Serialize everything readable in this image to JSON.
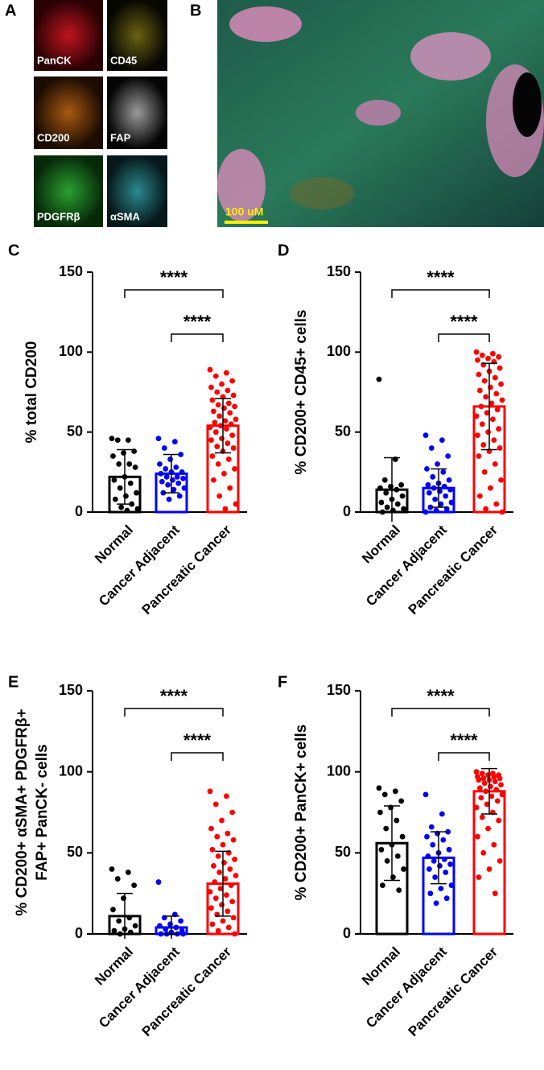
{
  "image_panels": {
    "letters": [
      "A",
      "B"
    ],
    "channels": [
      "PanCK",
      "CD45",
      "CD200",
      "FAP",
      "PDGFRβ",
      "αSMA"
    ],
    "scale_bar": "100 uM"
  },
  "chart_data": [
    {
      "type": "bar",
      "panel_label": "C",
      "ylabel": "% total CD200",
      "categories": [
        "Normal",
        "Cancer Adjacent",
        "Pancreatic Cancer"
      ],
      "colors": [
        "#000000",
        "#0000ff",
        "#ff0000"
      ],
      "values": [
        22,
        24,
        54
      ],
      "errors": [
        17,
        12,
        17
      ],
      "points": [
        [
          46,
          45,
          45,
          38,
          37,
          35,
          30,
          30,
          28,
          22,
          20,
          18,
          15,
          12,
          10,
          8,
          5,
          3,
          2,
          1
        ],
        [
          46,
          44,
          40,
          36,
          33,
          30,
          28,
          27,
          25,
          25,
          24,
          22,
          22,
          21,
          20,
          19,
          18,
          17,
          15,
          14,
          12,
          10,
          8
        ],
        [
          89,
          87,
          85,
          82,
          80,
          78,
          76,
          75,
          73,
          72,
          70,
          68,
          67,
          66,
          65,
          63,
          62,
          60,
          58,
          57,
          56,
          55,
          54,
          53,
          52,
          50,
          48,
          46,
          45,
          43,
          41,
          40,
          38,
          35,
          33,
          30,
          27,
          24,
          20,
          15,
          10,
          5,
          2
        ]
      ],
      "ylim": [
        0,
        150
      ],
      "yticks": [
        0,
        50,
        100,
        150
      ],
      "annotations": [
        {
          "text": "****",
          "between": [
            "Normal",
            "Pancreatic Cancer"
          ]
        },
        {
          "text": "****",
          "between": [
            "Cancer Adjacent",
            "Pancreatic Cancer"
          ]
        }
      ]
    },
    {
      "type": "bar",
      "panel_label": "D",
      "ylabel": "% CD200+ CD45+ cells",
      "categories": [
        "Normal",
        "Cancer Adjacent",
        "Pancreatic Cancer"
      ],
      "colors": [
        "#000000",
        "#0000ff",
        "#ff0000"
      ],
      "values": [
        14,
        15,
        66
      ],
      "errors": [
        20,
        12,
        27
      ],
      "points": [
        [
          83,
          33,
          20,
          17,
          16,
          15,
          14,
          12,
          10,
          8,
          6,
          5,
          3,
          2,
          1,
          0
        ],
        [
          48,
          45,
          40,
          35,
          30,
          27,
          25,
          22,
          20,
          18,
          17,
          16,
          15,
          14,
          13,
          12,
          10,
          8,
          6,
          5,
          3,
          2,
          1,
          0
        ],
        [
          100,
          99,
          98,
          97,
          96,
          95,
          94,
          92,
          90,
          88,
          86,
          84,
          82,
          80,
          78,
          76,
          74,
          72,
          70,
          68,
          66,
          64,
          62,
          60,
          58,
          55,
          52,
          50,
          48,
          45,
          42,
          40,
          38,
          35,
          30,
          25,
          20,
          15,
          10,
          5,
          2,
          0
        ]
      ],
      "ylim": [
        0,
        150
      ],
      "yticks": [
        0,
        50,
        100,
        150
      ],
      "annotations": [
        {
          "text": "****",
          "between": [
            "Normal",
            "Pancreatic Cancer"
          ]
        },
        {
          "text": "****",
          "between": [
            "Cancer Adjacent",
            "Pancreatic Cancer"
          ]
        }
      ]
    },
    {
      "type": "bar",
      "panel_label": "E",
      "ylabel": [
        "% CD200+ αSMA+ PDGFRβ+",
        "FAP+ PanCK- cells"
      ],
      "categories": [
        "Normal",
        "Cancer Adjacent",
        "Pancreatic Cancer"
      ],
      "colors": [
        "#000000",
        "#0000ff",
        "#ff0000"
      ],
      "values": [
        11,
        4,
        31
      ],
      "errors": [
        14,
        7,
        20
      ],
      "points": [
        [
          40,
          38,
          34,
          30,
          22,
          15,
          10,
          8,
          5,
          3,
          2,
          1,
          0
        ],
        [
          32,
          12,
          10,
          8,
          6,
          5,
          4,
          3,
          2,
          1,
          0,
          0,
          0,
          0
        ],
        [
          88,
          85,
          80,
          75,
          70,
          65,
          62,
          60,
          58,
          55,
          52,
          50,
          48,
          46,
          44,
          42,
          40,
          38,
          36,
          34,
          32,
          30,
          28,
          26,
          24,
          22,
          20,
          18,
          16,
          14,
          12,
          10,
          8,
          6,
          4,
          2,
          0
        ]
      ],
      "ylim": [
        0,
        150
      ],
      "yticks": [
        0,
        50,
        100,
        150
      ],
      "annotations": [
        {
          "text": "****",
          "between": [
            "Normal",
            "Pancreatic Cancer"
          ]
        },
        {
          "text": "****",
          "between": [
            "Cancer Adjacent",
            "Pancreatic Cancer"
          ]
        }
      ]
    },
    {
      "type": "bar",
      "panel_label": "F",
      "ylabel": "% CD200+ PanCK+ cells",
      "categories": [
        "Normal",
        "Cancer Adjacent",
        "Pancreatic Cancer"
      ],
      "colors": [
        "#000000",
        "#0000ff",
        "#ff0000"
      ],
      "values": [
        56,
        47,
        88
      ],
      "errors": [
        23,
        16,
        14
      ],
      "points": [
        [
          90,
          88,
          86,
          82,
          78,
          75,
          70,
          65,
          60,
          55,
          52,
          48,
          45,
          40,
          35,
          30,
          27
        ],
        [
          86,
          74,
          66,
          63,
          62,
          60,
          58,
          55,
          52,
          50,
          48,
          46,
          45,
          43,
          42,
          40,
          38,
          35,
          30,
          28,
          25,
          22,
          19
        ],
        [
          100,
          99,
          99,
          98,
          98,
          97,
          97,
          96,
          96,
          95,
          95,
          94,
          93,
          92,
          91,
          90,
          89,
          88,
          86,
          85,
          84,
          82,
          80,
          78,
          75,
          72,
          70,
          65,
          60,
          55,
          50,
          45,
          40,
          35,
          25
        ]
      ],
      "ylim": [
        0,
        150
      ],
      "yticks": [
        0,
        50,
        100,
        150
      ],
      "annotations": [
        {
          "text": "****",
          "between": [
            "Normal",
            "Pancreatic Cancer"
          ]
        },
        {
          "text": "****",
          "between": [
            "Cancer Adjacent",
            "Pancreatic Cancer"
          ]
        }
      ]
    }
  ]
}
